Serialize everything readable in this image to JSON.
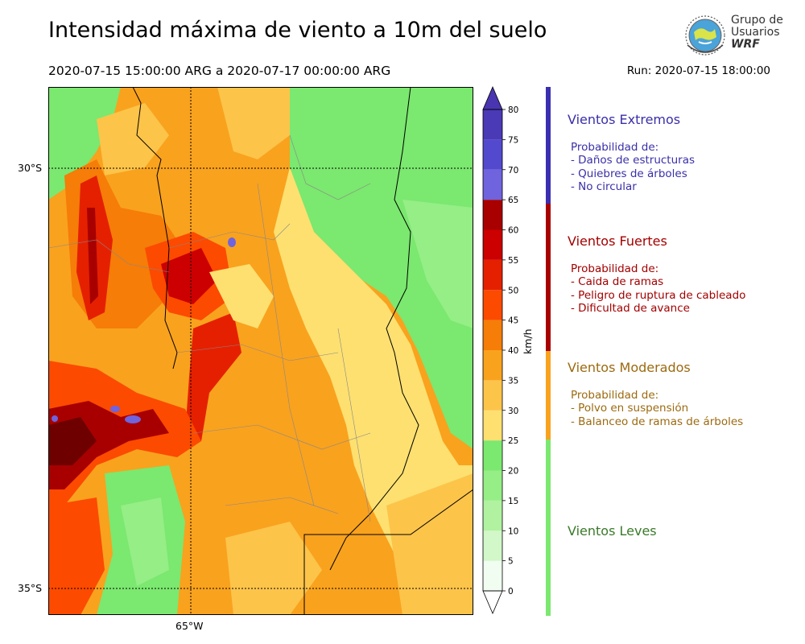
{
  "title": "Intensidad máxima de viento a 10m del suelo",
  "period": "2020-07-15 15:00:00 ARG  a  2020-07-17 00:00:00 ARG",
  "run": "Run: 2020-07-15 18:00:00",
  "logo": {
    "line1": "Grupo de",
    "line2": "Usuarios",
    "line3": "WRF"
  },
  "axes": {
    "lat_top": "30°S",
    "lat_bottom": "35°S",
    "lon": "65°W"
  },
  "colorbar": {
    "unit": "km/h",
    "levels": [
      0,
      5,
      10,
      15,
      20,
      25,
      30,
      35,
      40,
      45,
      50,
      55,
      60,
      65,
      70,
      75,
      80
    ],
    "colors": [
      "#f0fdf0",
      "#d2f7c8",
      "#b0f2a0",
      "#95ee86",
      "#7be86f",
      "#fde070",
      "#fdc44a",
      "#f9a21e",
      "#f57d08",
      "#fc4a00",
      "#e52000",
      "#cc0000",
      "#a80000",
      "#6f63de",
      "#5349cf",
      "#4a3ab6"
    ],
    "extend_color": "#4a35b0"
  },
  "categories": [
    {
      "title": "Vientos Extremos",
      "color": "#3a2fa8",
      "lines": [
        "Probabilidad de:",
        "- Daños de estructuras",
        "- Quiebres de árboles",
        "- No circular"
      ]
    },
    {
      "title": "Vientos Fuertes",
      "color": "#a30000",
      "lines": [
        "Probabilidad de:",
        "- Caida de ramas",
        "- Peligro de ruptura de cableado",
        "- Dificultad de avance"
      ]
    },
    {
      "title": "Vientos Moderados",
      "color": "#9c6a10",
      "lines": [
        "Probabilidad de:",
        "- Polvo en suspensión",
        "- Balanceo de ramas de árboles"
      ]
    },
    {
      "title": "Vientos Leves",
      "color": "#3a7a2a",
      "lines": []
    }
  ],
  "legend_bar_colors": {
    "extremos": "#3a2fb0",
    "fuertes": "#a80000",
    "moderados": "#f9a21e",
    "leves": "#7be86f"
  }
}
